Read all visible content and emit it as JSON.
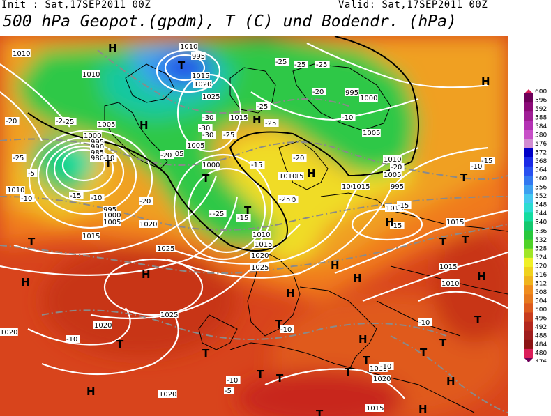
{
  "header": {
    "init_text": "Init : Sat,17SEP2011 00Z",
    "valid_text": "Valid: Sat,17SEP2011 00Z",
    "title": "500 hPa Geopot.(gpdm), T (C) und Bodendr. (hPa)"
  },
  "colors": {
    "colorbar": [
      "#6e005a",
      "#8c0a78",
      "#a01e96",
      "#b432b4",
      "#c850c8",
      "#d28cd2",
      "#0000c8",
      "#1a2ae6",
      "#2850f0",
      "#3278f0",
      "#3ca0f0",
      "#46c8f0",
      "#2ddcd2",
      "#14dca0",
      "#14c86e",
      "#28c83c",
      "#50d228",
      "#a0e628",
      "#f0f028",
      "#f0d21e",
      "#f0b41e",
      "#f08c1e",
      "#e6781e",
      "#dc5a1e",
      "#c83c1e",
      "#b4281e",
      "#a01e1e",
      "#8c1414",
      "#dc1e5a"
    ]
  },
  "legend": {
    "ticks": [
      "600",
      "596",
      "592",
      "588",
      "584",
      "580",
      "576",
      "572",
      "568",
      "564",
      "560",
      "556",
      "552",
      "548",
      "544",
      "540",
      "536",
      "532",
      "528",
      "524",
      "520",
      "516",
      "512",
      "508",
      "504",
      "500",
      "496",
      "492",
      "488",
      "484",
      "480",
      "476"
    ]
  },
  "map": {
    "pressure_labels": [
      "1010",
      "1010",
      "1005",
      "1000",
      "995",
      "990",
      "985",
      "980",
      "995",
      "1000",
      "1005",
      "1010",
      "1015",
      "1020",
      "1025",
      "1020",
      "1025",
      "1020",
      "1020",
      "1010",
      "1015",
      "1020",
      "1025",
      "1015",
      "1005",
      "1000",
      "1005",
      "1010",
      "1015",
      "1020",
      "1025",
      "995",
      "995",
      "1000",
      "1005",
      "1010",
      "1015",
      "1005",
      "1000",
      "995",
      "1015",
      "1010",
      "1015",
      "1015",
      "1015",
      "1015",
      "1010",
      "1015",
      "1020",
      "1015"
    ],
    "temp_labels": [
      "-20",
      "-20",
      "-25",
      "-25",
      "-25",
      "-25",
      "-30",
      "-30",
      "-30",
      "-25",
      "-25",
      "-25",
      "-25",
      "-20",
      "-20",
      "-15",
      "-15",
      "-10",
      "-10",
      "-5",
      "-10",
      "-5",
      "-15",
      "-20",
      "-25",
      "-25",
      "-20",
      "-20",
      "-15",
      "-15",
      "-10",
      "-10",
      "-10",
      "-10",
      "-10",
      "-5",
      "-10",
      "-15",
      "-20",
      "-25",
      "-20",
      "-10"
    ],
    "highs": [
      "H",
      "H",
      "H",
      "H",
      "H",
      "H",
      "H",
      "H",
      "H",
      "H",
      "H",
      "H",
      "H",
      "H",
      "H",
      "H"
    ],
    "lows": [
      "T",
      "T",
      "T",
      "T",
      "T",
      "T",
      "T",
      "T",
      "T",
      "T",
      "T",
      "T",
      "T",
      "T",
      "T",
      "T",
      "T",
      "T",
      "T"
    ]
  }
}
